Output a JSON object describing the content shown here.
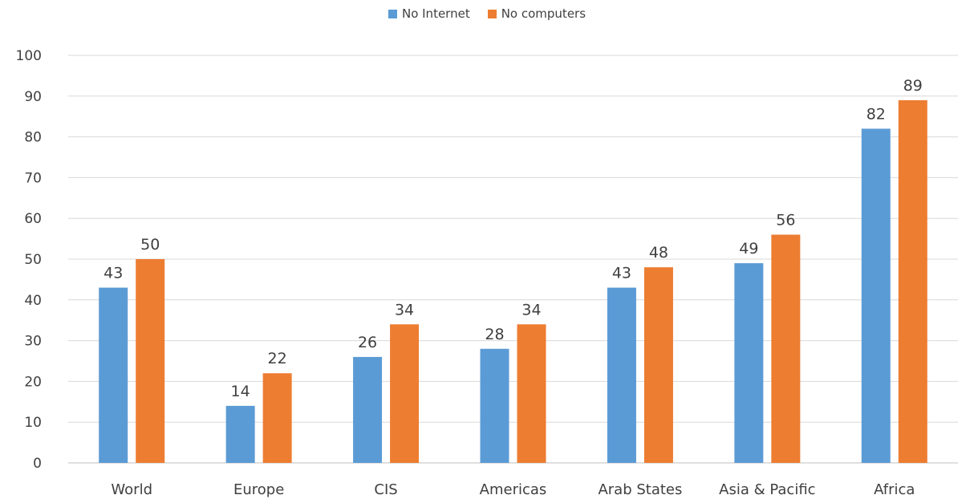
{
  "chart_data": {
    "type": "bar",
    "categories": [
      "World",
      "Europe",
      "CIS",
      "Americas",
      "Arab States",
      "Asia & Pacific",
      "Africa"
    ],
    "series": [
      {
        "name": "No Internet",
        "values": [
          43,
          14,
          26,
          28,
          43,
          49,
          82
        ],
        "color": "#5B9BD5"
      },
      {
        "name": "No computers",
        "values": [
          50,
          22,
          34,
          34,
          48,
          56,
          89
        ],
        "color": "#ED7D31"
      }
    ],
    "data_labels": [
      [
        "43",
        "14",
        "26",
        "28",
        "43",
        "49",
        "82"
      ],
      [
        "50",
        "22",
        "34",
        "34",
        "48",
        "56",
        "89"
      ]
    ],
    "ylim": [
      0,
      100
    ],
    "yticks": [
      0,
      10,
      20,
      30,
      40,
      50,
      60,
      70,
      80,
      90,
      100
    ],
    "grid": true,
    "legend_position": "top-center",
    "title": "",
    "xlabel": "",
    "ylabel": "",
    "gridline_color": "#d9d9d9"
  }
}
